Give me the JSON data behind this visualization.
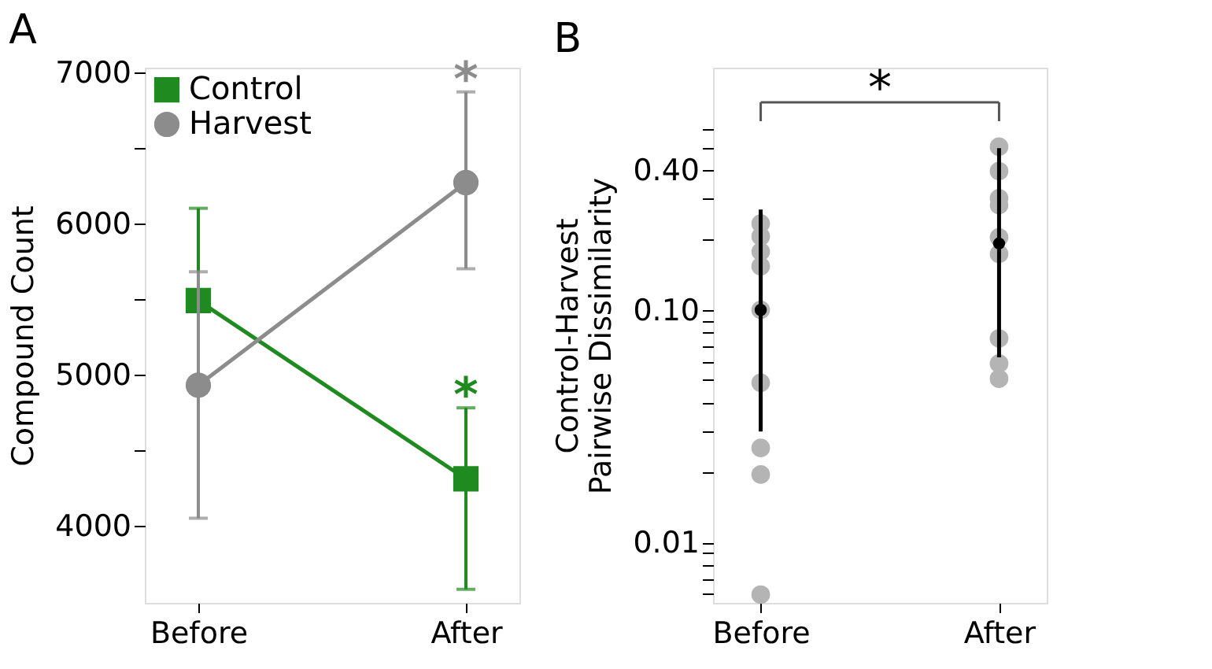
{
  "chart_data": [
    {
      "type": "line",
      "title": "A",
      "ylabel": "Compound Count",
      "categories": [
        "Before",
        "After"
      ],
      "ylim": [
        3490,
        7030
      ],
      "yticks": [
        4000,
        {
          "value": 4500,
          "label": null
        },
        5000,
        {
          "value": 5500,
          "label": null
        },
        6000,
        {
          "value": 6500,
          "label": null
        },
        7000
      ],
      "grid": false,
      "legend": "top left",
      "series": [
        {
          "name": "Control",
          "color": "#1f8a1f",
          "marker": "square",
          "values": [
            5490,
            4310
          ],
          "errors": [
            610,
            [
              3580,
              4780
            ]
          ]
        },
        {
          "name": "Harvest",
          "color": "#8c8c8c",
          "marker": "circle",
          "values": [
            4930,
            6270
          ],
          "errors": [
            [
              4050,
              5680
            ],
            [
              5700,
              6870
            ]
          ]
        }
      ],
      "annotations": [
        "*",
        "*"
      ]
    },
    {
      "type": "scatter",
      "title": "B",
      "ylabel": "Control-Harvest\nPairwise Dissimilarity",
      "categories": [
        "Before",
        "After"
      ],
      "log": true,
      "ylim": [
        0.0055,
        1.1
      ],
      "yticks": [
        {
          "value": 0.006,
          "label": null
        },
        {
          "value": 0.007,
          "label": null
        },
        {
          "value": 0.008,
          "label": null
        },
        {
          "value": 0.009,
          "label": null
        },
        {
          "value": 0.01,
          "label": "0.01"
        },
        {
          "value": 0.02,
          "label": null
        },
        {
          "value": 0.03,
          "label": null
        },
        {
          "value": 0.04,
          "label": null
        },
        {
          "value": 0.05,
          "label": null
        },
        {
          "value": 0.06,
          "label": null
        },
        {
          "value": 0.07,
          "label": null
        },
        {
          "value": 0.08,
          "label": null
        },
        {
          "value": 0.09,
          "label": null
        },
        {
          "value": 0.1,
          "label": "0.10"
        },
        {
          "value": 0.2,
          "label": null
        },
        {
          "value": 0.3,
          "label": null
        },
        {
          "value": 0.4,
          "label": "0.40"
        },
        {
          "value": 0.5,
          "label": null
        },
        {
          "value": 0.6,
          "label": null
        }
      ],
      "grid": false,
      "marker": "circle",
      "series": [
        {
          "type": "scatter",
          "color": "#b4b4b4",
          "x": [
            "Before",
            "Before",
            "Before",
            "Before",
            "Before",
            "Before",
            "Before",
            "Before",
            "Before",
            "After",
            "After",
            "After",
            "After",
            "After",
            "After",
            "After",
            "After",
            "After"
          ],
          "values": [
            0.235,
            0.207,
            0.178,
            0.154,
            0.1,
            0.0486,
            0.0255,
            0.0196,
            0.00597,
            0.503,
            0.395,
            0.302,
            0.282,
            0.205,
            0.174,
            0.0754,
            0.0588,
            0.0506
          ]
        },
        {
          "type": "scatter",
          "color": "#000000",
          "values": [
            0.1,
            0.193
          ],
          "errors": [
            [
              0.03,
              0.27
            ],
            [
              0.0625,
              0.496
            ]
          ]
        }
      ],
      "annotations": [
        "*"
      ]
    }
  ]
}
